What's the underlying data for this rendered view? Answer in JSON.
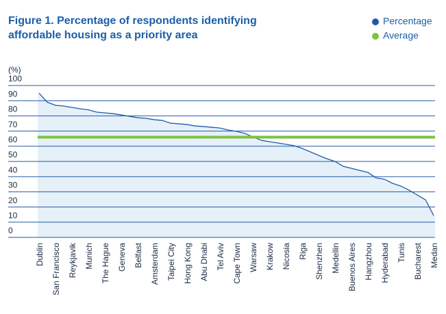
{
  "chart_data": {
    "type": "area",
    "title": "Figure 1. Percentage of respondents identifying affordable housing as a priority area",
    "y_label": "(%)",
    "categories": [
      "Dublin",
      null,
      "San Francisco",
      null,
      "Reykjavik",
      null,
      "Munich",
      null,
      "The Hague",
      null,
      "Geneva",
      null,
      "Belfast",
      null,
      "Amsterdam",
      null,
      "Taipei City",
      null,
      "Hong Kong",
      null,
      "Abu Dhabi",
      null,
      "Tel Aviv",
      null,
      "Cape Town",
      null,
      "Warsaw",
      null,
      "Krakow",
      null,
      "Nicosia",
      null,
      "Riga",
      null,
      "Shenzhen",
      null,
      "Medellin",
      null,
      "Buenos Aires",
      null,
      "Hangzhou",
      null,
      "Hyderabad",
      null,
      "Tunis",
      null,
      "Bucharest",
      null,
      "Medan"
    ],
    "series": [
      {
        "name": "Percentage",
        "color": "#1f5aa6",
        "values": [
          95,
          89,
          87,
          86.5,
          85.6,
          84.7,
          84,
          82.5,
          82,
          81.5,
          80.6,
          79.7,
          78.8,
          78.4,
          77.5,
          77,
          75.2,
          74.8,
          74.3,
          73.4,
          73,
          72.5,
          72,
          70.7,
          69.8,
          68.5,
          66.2,
          64,
          63,
          62.2,
          61.3,
          60.4,
          58.6,
          56.3,
          54,
          51.8,
          50,
          46.8,
          45.5,
          44.1,
          42.8,
          39.2,
          38.3,
          35.6,
          33.8,
          31.1,
          27.9,
          24.8,
          14.4
        ]
      }
    ],
    "average": {
      "name": "Average",
      "color": "#7dc242",
      "value": 66
    },
    "area_color": "#e6f0f9",
    "ylim": [
      0,
      100
    ],
    "yticks": [
      0,
      10,
      20,
      30,
      40,
      50,
      60,
      70,
      80,
      90,
      100
    ],
    "grid": true,
    "legend": "top-right"
  }
}
